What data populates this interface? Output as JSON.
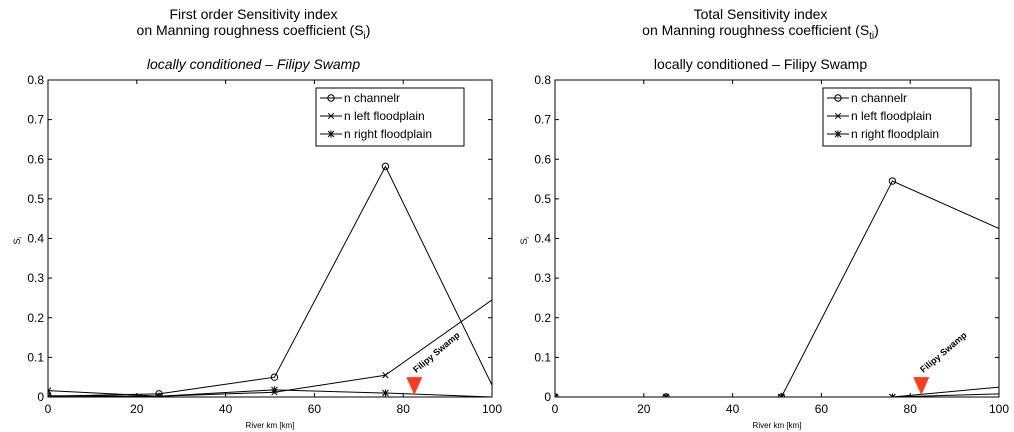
{
  "chart_data": [
    {
      "type": "line",
      "title_line1": "First order Sensitivity index",
      "title_line2": "on Manning roughness coefficient (S",
      "title_sub": "i",
      "title_close": ")",
      "subtitle": "locally conditioned – Filipy Swamp",
      "xlabel": "River km [km]",
      "ylabel": "S",
      "ylabel_sub": "i",
      "xlim": [
        0,
        100
      ],
      "ylim": [
        0,
        0.8
      ],
      "xticks": [
        0,
        20,
        40,
        60,
        80,
        100
      ],
      "yticks": [
        0,
        0.1,
        0.2,
        0.3,
        0.4,
        0.5,
        0.6,
        0.7,
        0.8
      ],
      "legend_position": "top-right",
      "annotation": {
        "text": "Filipy Swamp",
        "x": 82.5,
        "y": 0.025
      },
      "series": [
        {
          "name": "n channelr",
          "marker": "circle",
          "x": [
            0,
            25,
            51,
            76,
            100
          ],
          "y": [
            0.002,
            0.008,
            0.05,
            0.582,
            0.03
          ]
        },
        {
          "name": "n left floodplain",
          "marker": "x",
          "x": [
            0,
            25,
            51,
            76,
            100
          ],
          "y": [
            0.003,
            0.002,
            0.012,
            0.055,
            0.245
          ]
        },
        {
          "name": "n right floodplain",
          "marker": "star",
          "x": [
            0,
            25,
            51,
            76,
            100
          ],
          "y": [
            0.016,
            0.002,
            0.018,
            0.01,
            0.0
          ]
        }
      ]
    },
    {
      "type": "line",
      "title_line1": "Total Sensitivity index",
      "title_line2": "on Manning roughness coefficient (S",
      "title_sub": "ti",
      "title_close": ")",
      "subtitle": "locally conditioned – Filipy Swamp",
      "xlabel": "River km [km]",
      "ylabel": "S",
      "ylabel_sub": "i",
      "xlim": [
        0,
        100
      ],
      "ylim": [
        0,
        0.8
      ],
      "xticks": [
        0,
        20,
        40,
        60,
        80,
        100
      ],
      "yticks": [
        0,
        0.1,
        0.2,
        0.3,
        0.4,
        0.5,
        0.6,
        0.7,
        0.8
      ],
      "legend_position": "top-right",
      "annotation": {
        "text": "Filipy Swamp",
        "x": 82.5,
        "y": 0.025
      },
      "series": [
        {
          "name": "n channelr",
          "marker": "circle",
          "x": [
            0,
            25,
            51,
            76,
            100
          ],
          "y": [
            0.0,
            0.0,
            0.0,
            0.545,
            0.425
          ]
        },
        {
          "name": "n left floodplain",
          "marker": "x",
          "x": [
            0,
            25,
            51,
            76,
            100
          ],
          "y": [
            0.0,
            0.0,
            0.0,
            0.0,
            0.025
          ]
        },
        {
          "name": "n right floodplain",
          "marker": "star",
          "x": [
            0,
            25,
            51,
            76,
            100
          ],
          "y": [
            0.0,
            0.0,
            0.0,
            0.0,
            0.008
          ]
        }
      ]
    }
  ]
}
